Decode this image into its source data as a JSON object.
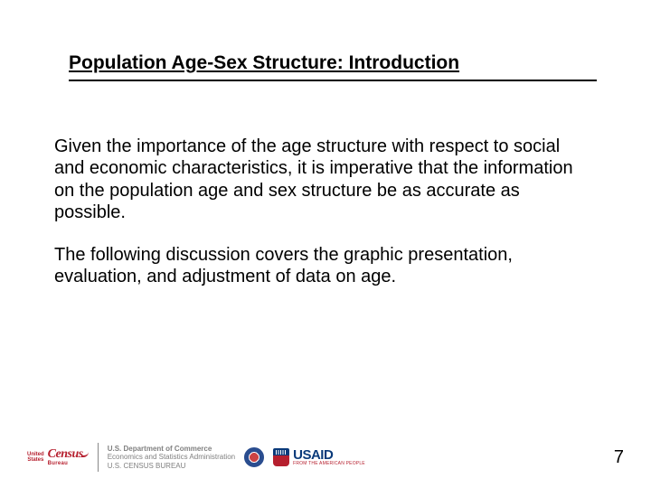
{
  "title": "Population Age-Sex Structure: Introduction",
  "paragraphs": {
    "p1": "Given the importance of the age structure with respect to social and economic characteristics, it is imperative that the information on the population age and sex structure be as accurate as possible.",
    "p2": "The following discussion covers the graphic presentation, evaluation, and adjustment of data on age."
  },
  "footer": {
    "census": {
      "united": "United",
      "states": "States",
      "main": "Census",
      "bureau": "Bureau"
    },
    "doc": {
      "line1": "U.S. Department of Commerce",
      "line2": "Economics and Statistics Administration",
      "line3": "U.S. CENSUS BUREAU"
    },
    "usaid": {
      "main": "USAID",
      "sub": "FROM THE AMERICAN PEOPLE"
    },
    "page": "7"
  }
}
